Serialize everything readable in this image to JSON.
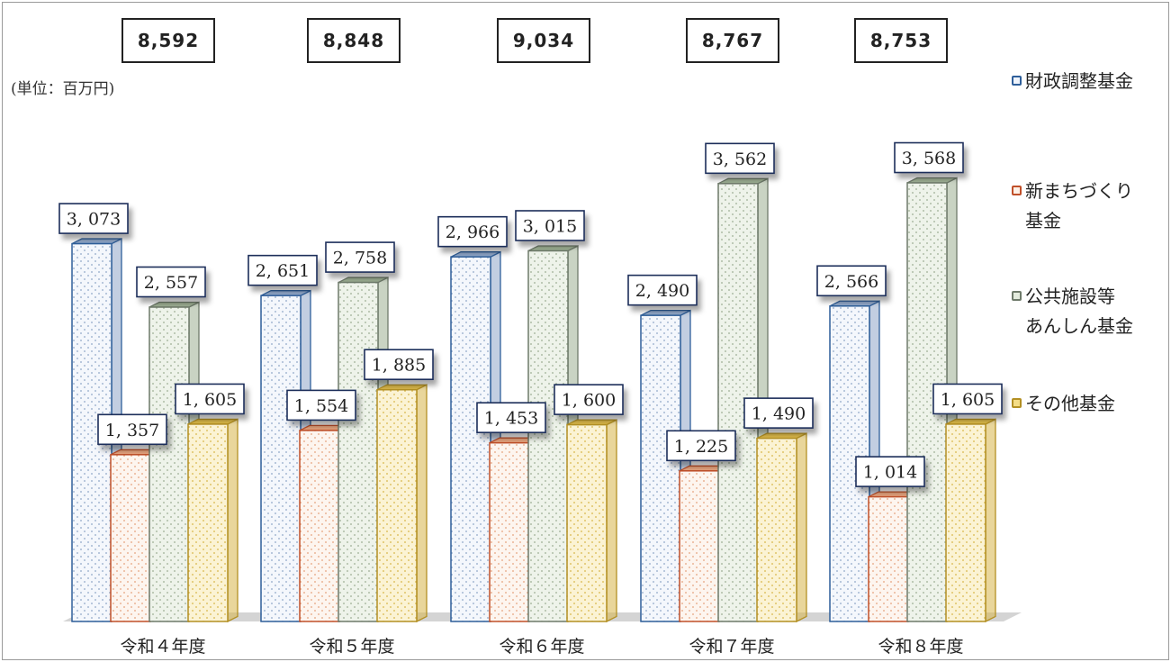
{
  "chart_data": {
    "type": "bar",
    "unit_label": "(単位：百万円)",
    "categories": [
      "令和４年度",
      "令和５年度",
      "令和６年度",
      "令和７年度",
      "令和８年度"
    ],
    "totals": [
      "8,592",
      "8,848",
      "9,034",
      "8,767",
      "8,753"
    ],
    "series": [
      {
        "name": "財政調整基金",
        "legend_label": "財政調整基金",
        "values": [
          3073,
          2651,
          2966,
          2490,
          2566
        ],
        "value_labels": [
          "3, 073",
          "2, 651",
          "2, 966",
          "2, 490",
          "2, 566"
        ],
        "color": "#2f5f9a",
        "fill": "#f4f7fc",
        "dot": "#8fa6c8"
      },
      {
        "name": "新まちづくり基金",
        "legend_label": "新まちづくり\n基金",
        "values": [
          1357,
          1554,
          1453,
          1225,
          1014
        ],
        "value_labels": [
          "1, 357",
          "1, 554",
          "1, 453",
          "1, 225",
          "1, 014"
        ],
        "color": "#c0502a",
        "fill": "#fdf5ef",
        "dot": "#e5a27c"
      },
      {
        "name": "公共施設等あんしん基金",
        "legend_label": "公共施設等\nあんしん基金",
        "values": [
          2557,
          2758,
          3015,
          3562,
          3568
        ],
        "value_labels": [
          "2, 557",
          "2, 758",
          "3, 015",
          "3, 562",
          "3, 568"
        ],
        "color": "#6e7a6a",
        "fill": "#eef3ea",
        "dot": "#9cae92"
      },
      {
        "name": "その他基金",
        "legend_label": "その他基金",
        "values": [
          1605,
          1885,
          1600,
          1490,
          1605
        ],
        "value_labels": [
          "1, 605",
          "1, 885",
          "1, 600",
          "1, 490",
          "1, 605"
        ],
        "color": "#b39024",
        "fill": "#fbf3d4",
        "dot": "#d7b548"
      }
    ],
    "ylim": [
      0,
      3700
    ],
    "grid": false,
    "legend_position": "right"
  }
}
